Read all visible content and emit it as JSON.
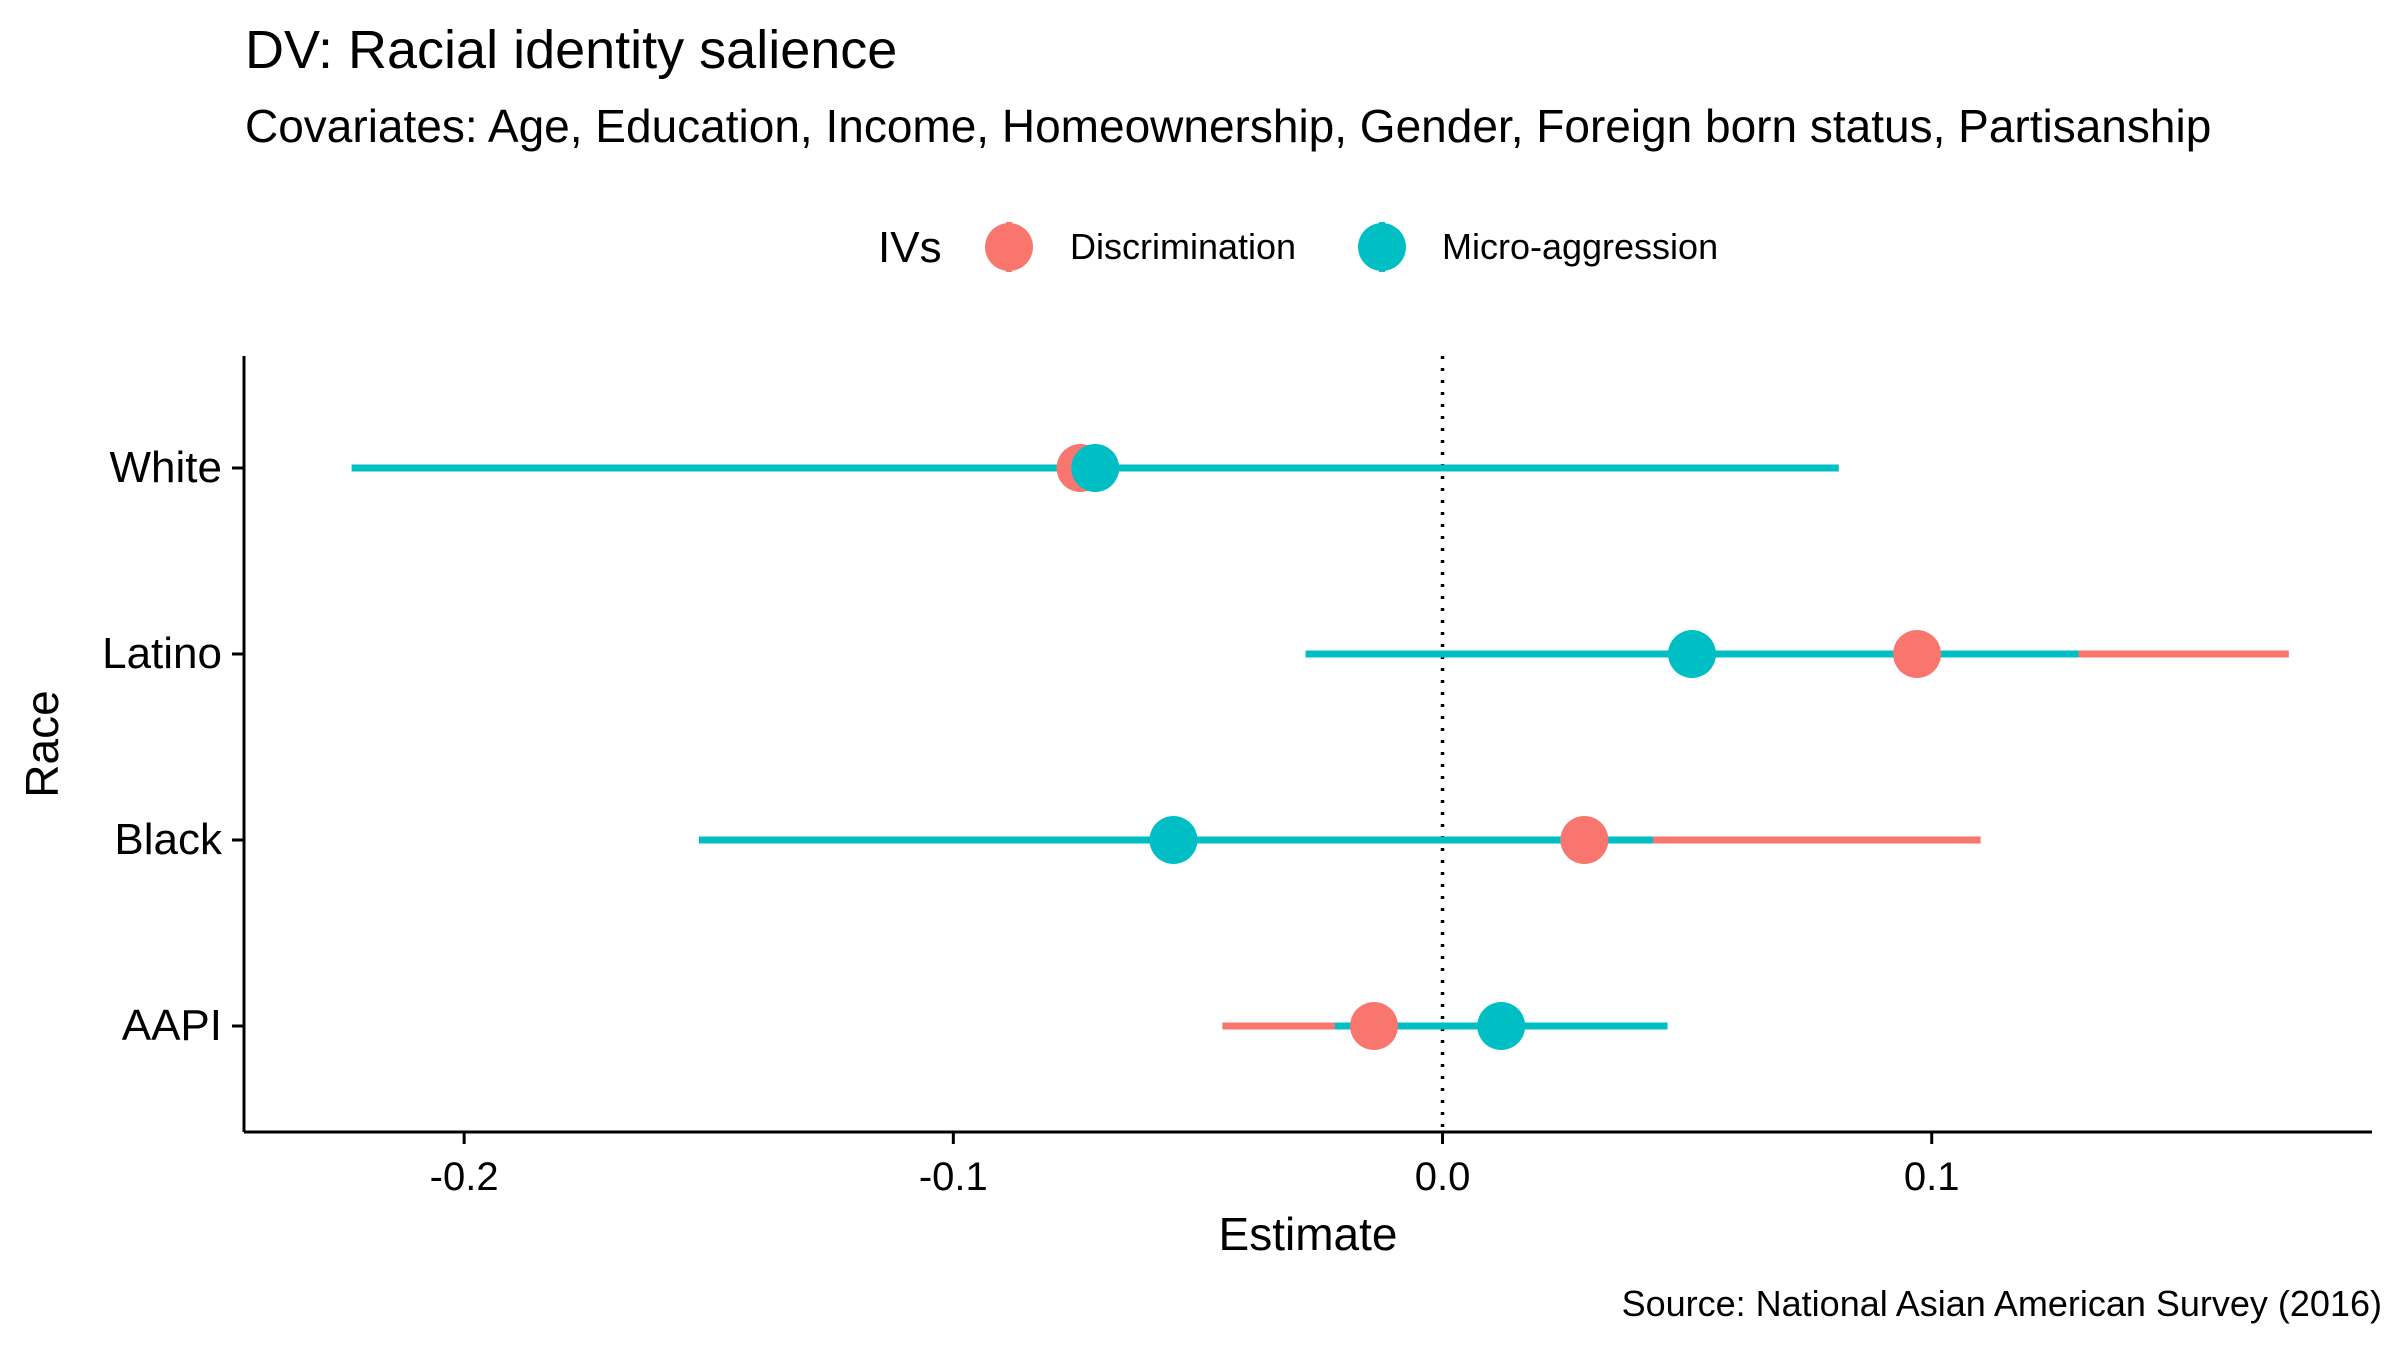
{
  "title": "DV: Racial identity salience",
  "subtitle": "Covariates: Age, Education, Income, Homeownership, Gender, Foreign born status, Partisanship",
  "caption": "Source: National Asian American Survey (2016)",
  "legend": {
    "title": "IVs",
    "position": "top",
    "items": [
      "Discrimination",
      "Micro-aggression"
    ]
  },
  "colors": {
    "Discrimination": "#F8766D",
    "Micro-aggression": "#00BFC4"
  },
  "chart_data": {
    "type": "dot-and-whisker",
    "title": "DV: Racial identity salience",
    "subtitle": "Covariates: Age, Education, Income, Homeownership, Gender, Foreign born status, Partisanship",
    "xlabel": "Estimate",
    "ylabel": "Race",
    "xlim": [
      -0.245,
      0.19
    ],
    "xticks": [
      -0.2,
      -0.1,
      0.0,
      0.1
    ],
    "xtick_labels": [
      "-0.2",
      "-0.1",
      "0.0",
      "0.1"
    ],
    "categories": [
      "White",
      "Latino",
      "Black",
      "AAPI"
    ],
    "reference_line": 0,
    "grid": false,
    "series": [
      {
        "name": "Discrimination",
        "estimates": [
          -0.074,
          0.097,
          0.029,
          -0.014
        ],
        "lower": [
          -0.085,
          0.03,
          -0.02,
          -0.045
        ],
        "upper": [
          -0.06,
          0.173,
          0.11,
          0.015
        ]
      },
      {
        "name": "Micro-aggression",
        "estimates": [
          -0.071,
          0.051,
          -0.055,
          0.012
        ],
        "lower": [
          -0.223,
          -0.028,
          -0.152,
          -0.022
        ],
        "upper": [
          0.081,
          0.13,
          0.043,
          0.046
        ]
      }
    ]
  }
}
